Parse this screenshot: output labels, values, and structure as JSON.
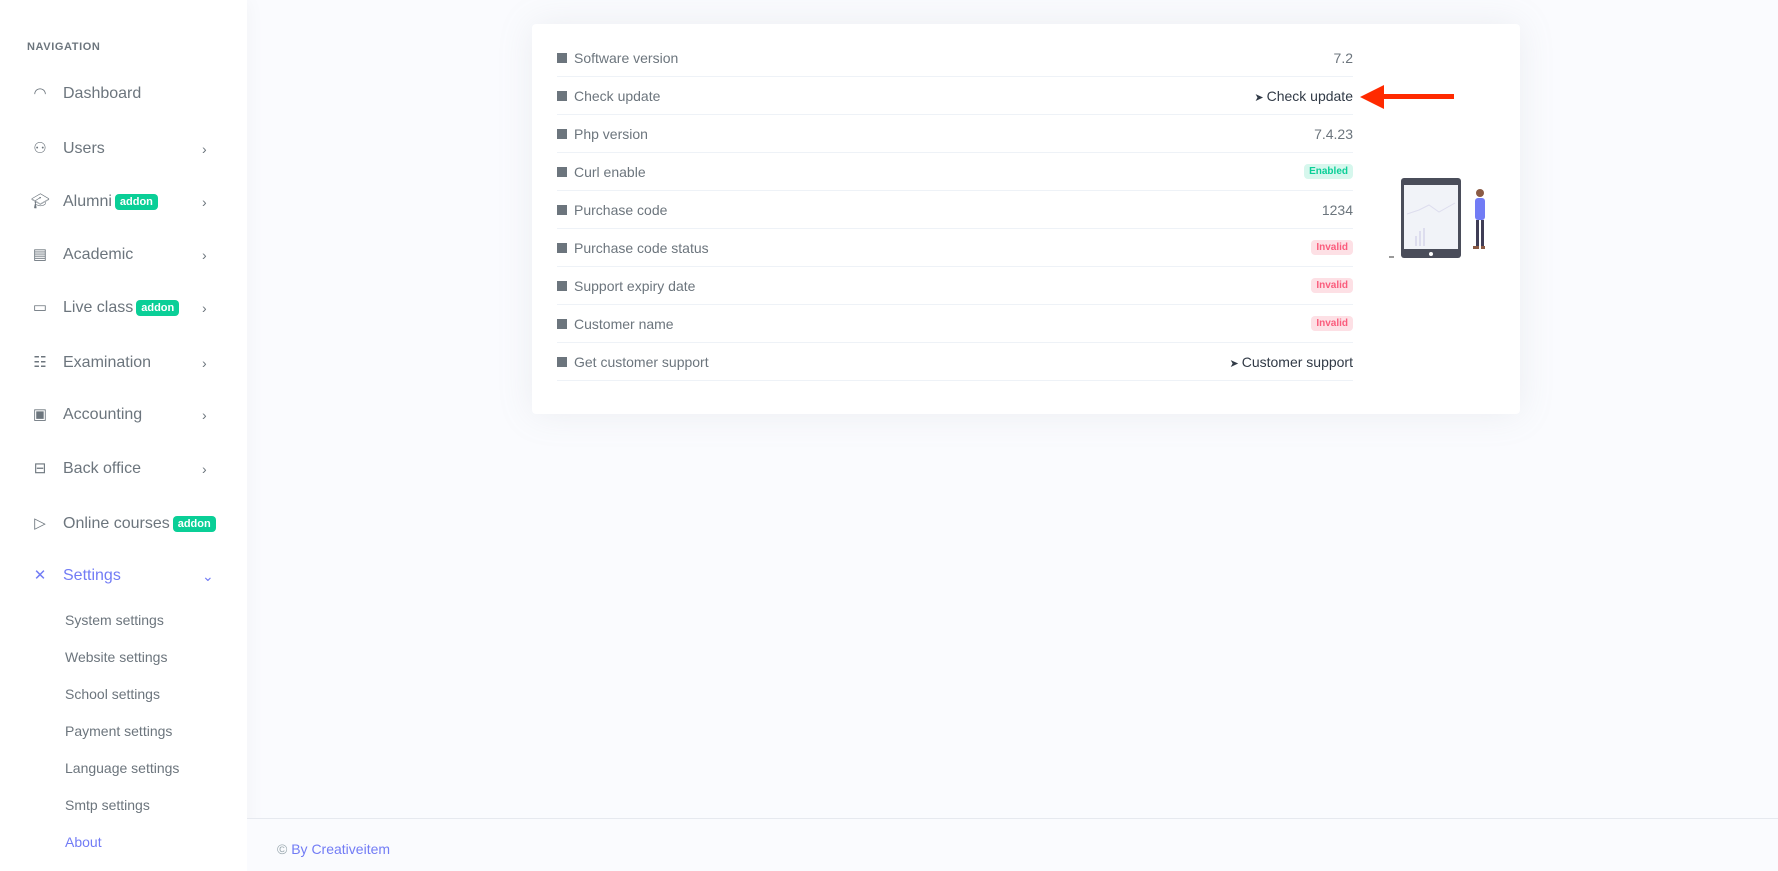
{
  "sidebar": {
    "title": "NAVIGATION",
    "items": [
      {
        "label": "Dashboard",
        "icon": "gauge-icon"
      },
      {
        "label": "Users",
        "icon": "user-icon",
        "chevron": "›"
      },
      {
        "label": "Alumni",
        "icon": "graduation-cap-icon",
        "badge": "addon",
        "chevron": "›"
      },
      {
        "label": "Academic",
        "icon": "store-icon",
        "chevron": "›"
      },
      {
        "label": "Live class",
        "icon": "video-icon",
        "badge": "addon",
        "chevron": "›"
      },
      {
        "label": "Examination",
        "icon": "clipboard-icon",
        "chevron": "›"
      },
      {
        "label": "Accounting",
        "icon": "briefcase-icon",
        "chevron": "›"
      },
      {
        "label": "Back office",
        "icon": "basket-icon",
        "chevron": "›"
      },
      {
        "label": "Online courses",
        "icon": "play-icon",
        "badge": "addon"
      },
      {
        "label": "Settings",
        "icon": "tools-icon",
        "chevron": "⌄",
        "active": true
      }
    ],
    "submenu": [
      "System settings",
      "Website settings",
      "School settings",
      "Payment settings",
      "Language settings",
      "Smtp settings",
      "About"
    ]
  },
  "about": {
    "rows": [
      {
        "label": "Software version",
        "value": "7.2"
      },
      {
        "label": "Check update",
        "link": "Check update"
      },
      {
        "label": "Php version",
        "value": "7.4.23"
      },
      {
        "label": "Curl enable",
        "badge": "Enabled"
      },
      {
        "label": "Purchase code",
        "value": "1234"
      },
      {
        "label": "Purchase code status",
        "badge": "Invalid"
      },
      {
        "label": "Support expiry date",
        "badge": "Invalid"
      },
      {
        "label": "Customer name",
        "badge": "Invalid"
      },
      {
        "label": "Get customer support",
        "link": "Customer support"
      }
    ]
  },
  "footer": {
    "copyright": "©",
    "text": "By Creativeitem"
  },
  "colors": {
    "accent": "#727cf5",
    "success": "#0acf97",
    "danger": "#fa5c7c",
    "annotation_arrow": "#ff2a00"
  }
}
